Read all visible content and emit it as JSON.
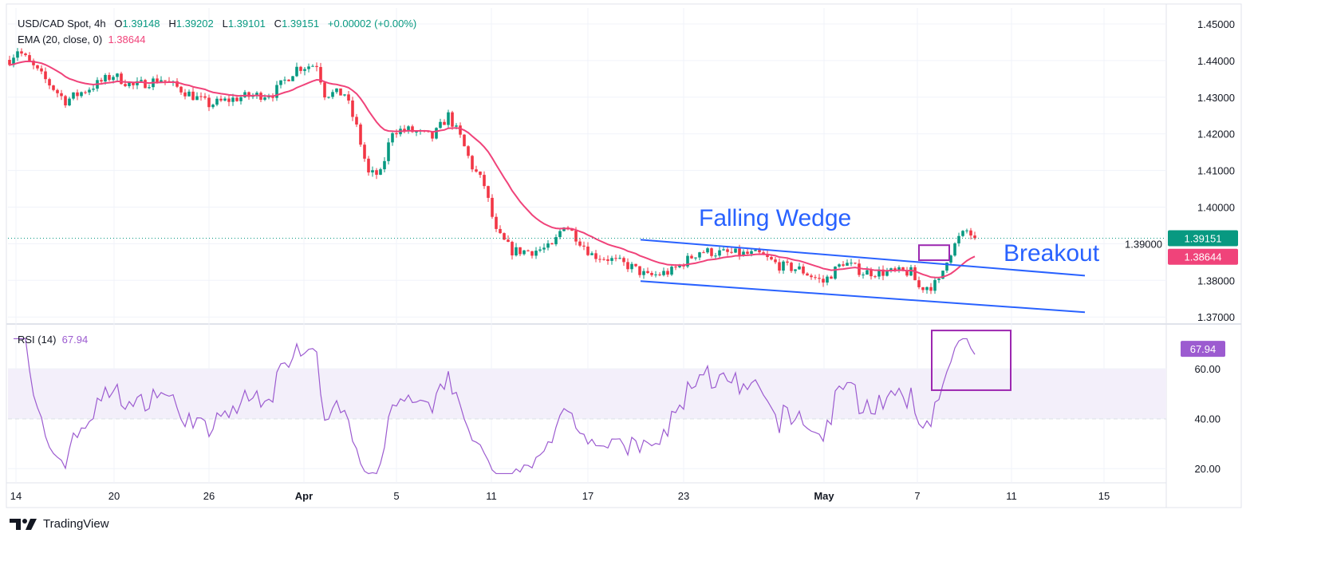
{
  "header": {
    "symbol": "USD/CAD Spot, 4h",
    "open_label": "O",
    "open": "1.39148",
    "high_label": "H",
    "high": "1.39202",
    "low_label": "L",
    "low": "1.39101",
    "close_label": "C",
    "close": "1.39151",
    "change": "+0.00002 (+0.00%)",
    "ema_label": "EMA (20, close, 0)",
    "ema_value": "1.38644",
    "rsi_label": "RSI (14)",
    "rsi_value": "67.94"
  },
  "brand": {
    "name": "TradingView"
  },
  "colors": {
    "up": "#089981",
    "down": "#f23645",
    "ema": "#f0437a",
    "rsi": "#9c5bd0",
    "wedge": "#2962ff",
    "box": "#9c27b0"
  },
  "chart_data": [
    {
      "type": "candlestick",
      "title": "USD/CAD Spot, 4h",
      "ylim": [
        1.366,
        1.452
      ],
      "y_ticks": [
        "1.45000",
        "1.44000",
        "1.43000",
        "1.42000",
        "1.41000",
        "1.40000",
        "1.39000",
        "1.38000",
        "1.37000"
      ],
      "x_ticks": [
        {
          "label": "14",
          "i": 1.6
        },
        {
          "label": "20",
          "i": 26.2
        },
        {
          "label": "26",
          "i": 50
        },
        {
          "label": "Apr",
          "i": 73.8,
          "bold": true
        },
        {
          "label": "5",
          "i": 97
        },
        {
          "label": "11",
          "i": 120.8
        },
        {
          "label": "17",
          "i": 145
        },
        {
          "label": "23",
          "i": 169
        },
        {
          "label": "May",
          "i": 204.2,
          "bold": true
        },
        {
          "label": "7",
          "i": 227.6
        },
        {
          "label": "11",
          "i": 251.2
        },
        {
          "label": "15",
          "i": 274.4
        }
      ],
      "price_path": [
        [
          0,
          1.4402
        ],
        [
          2,
          1.443
        ],
        [
          7,
          1.437
        ],
        [
          14,
          1.429
        ],
        [
          26,
          1.436
        ],
        [
          31,
          1.433
        ],
        [
          38,
          1.435
        ],
        [
          50,
          1.428
        ],
        [
          58,
          1.43
        ],
        [
          66,
          1.431
        ],
        [
          72,
          1.438
        ],
        [
          77,
          1.439
        ],
        [
          79,
          1.431
        ],
        [
          84,
          1.431
        ],
        [
          87,
          1.4217
        ],
        [
          90,
          1.409
        ],
        [
          93,
          1.409
        ],
        [
          96,
          1.421
        ],
        [
          100,
          1.421
        ],
        [
          106,
          1.419
        ],
        [
          110,
          1.425
        ],
        [
          113,
          1.419
        ],
        [
          116,
          1.411
        ],
        [
          119,
          1.406
        ],
        [
          122,
          1.393
        ],
        [
          126,
          1.388
        ],
        [
          131,
          1.388
        ],
        [
          136,
          1.389
        ],
        [
          139,
          1.3955
        ],
        [
          142,
          1.392
        ],
        [
          146,
          1.387
        ],
        [
          150,
          1.386
        ],
        [
          156,
          1.3836
        ],
        [
          160,
          1.381
        ],
        [
          166,
          1.3825
        ],
        [
          173,
          1.388
        ],
        [
          178,
          1.3875
        ],
        [
          188,
          1.387
        ],
        [
          193,
          1.384
        ],
        [
          198,
          1.383
        ],
        [
          204,
          1.3795
        ],
        [
          209,
          1.385
        ],
        [
          214,
          1.3822
        ],
        [
          220,
          1.3822
        ],
        [
          226,
          1.3822
        ],
        [
          228,
          1.378
        ],
        [
          231,
          1.3785
        ],
        [
          233,
          1.3795
        ],
        [
          235,
          1.386
        ],
        [
          238,
          1.3915
        ],
        [
          240,
          1.3935
        ],
        [
          242,
          1.39151
        ]
      ],
      "last_price": "1.39151",
      "ema_period": 20,
      "ema_last": "1.38644",
      "annotations": [
        {
          "text": "Falling Wedge"
        },
        {
          "text": "Breakout"
        }
      ],
      "wedge_lines": [
        {
          "from": [
            158.2,
            1.3911
          ],
          "to": [
            269.6,
            1.3813
          ]
        },
        {
          "from": [
            158.2,
            1.3798
          ],
          "to": [
            269.6,
            1.3713
          ]
        }
      ],
      "breakout_box": {
        "from": [
          228,
          1.3896
        ],
        "to": [
          235.6,
          1.3855
        ]
      }
    },
    {
      "type": "line",
      "title": "RSI (14)",
      "y_ticks": [
        "60.00",
        "40.00",
        "20.00"
      ],
      "band": [
        40,
        60
      ],
      "last_value": "67.94",
      "highlight_box": {
        "from": [
          231.2,
          75.3
        ],
        "to": [
          251,
          51.4
        ]
      }
    }
  ]
}
